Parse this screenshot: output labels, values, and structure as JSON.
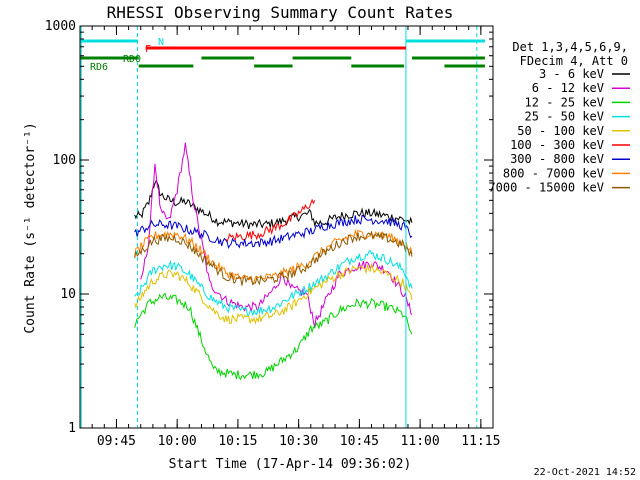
{
  "chart_data": {
    "type": "line",
    "title": "RHESSI Observing Summary Count Rates",
    "xlabel": "Start Time (17-Apr-14 09:36:02)",
    "ylabel": "Count Rate (s⁻¹ detector⁻¹)",
    "y_scale": "log",
    "ylim": [
      1,
      1000
    ],
    "xlim_minutes_after_0936": [
      0,
      102
    ],
    "x_ticks": [
      {
        "label": "09:45",
        "min": 9
      },
      {
        "label": "10:00",
        "min": 24
      },
      {
        "label": "10:15",
        "min": 39
      },
      {
        "label": "10:30",
        "min": 54
      },
      {
        "label": "10:45",
        "min": 69
      },
      {
        "label": "11:00",
        "min": 84
      },
      {
        "label": "11:15",
        "min": 99
      }
    ],
    "y_ticks": [
      {
        "label": "1",
        "value": 1
      },
      {
        "label": "10",
        "value": 10
      },
      {
        "label": "100",
        "value": 100
      },
      {
        "label": "1000",
        "value": 1000
      }
    ],
    "legend_header": [
      "Det 1,3,4,5,6,9,",
      "FDecim 4, Att 0"
    ],
    "legend_position": "right",
    "series": [
      {
        "name": "3 - 6 keV",
        "color": "#000000",
        "points": [
          [
            13.5,
            38
          ],
          [
            15,
            38
          ],
          [
            17,
            48
          ],
          [
            18.5,
            70
          ],
          [
            20,
            55
          ],
          [
            22,
            50
          ],
          [
            24,
            48
          ],
          [
            26,
            49
          ],
          [
            28,
            45
          ],
          [
            31,
            40
          ],
          [
            34,
            35
          ],
          [
            38,
            34
          ],
          [
            42,
            33
          ],
          [
            46,
            33
          ],
          [
            50,
            35
          ],
          [
            54,
            38
          ],
          [
            57,
            40
          ],
          [
            58,
            34
          ],
          [
            60,
            34
          ],
          [
            64,
            38
          ],
          [
            68,
            40
          ],
          [
            72,
            40
          ],
          [
            76,
            38
          ],
          [
            80,
            36
          ],
          [
            82,
            34
          ]
        ]
      },
      {
        "name": "6 - 12 keV",
        "color": "#d400d4",
        "points": [
          [
            15,
            12
          ],
          [
            17,
            25
          ],
          [
            18.5,
            95
          ],
          [
            20,
            40
          ],
          [
            22,
            35
          ],
          [
            24,
            60
          ],
          [
            26,
            128
          ],
          [
            28,
            50
          ],
          [
            30,
            25
          ],
          [
            32,
            12
          ],
          [
            36,
            9
          ],
          [
            40,
            8
          ],
          [
            44,
            8
          ],
          [
            48,
            11
          ],
          [
            50,
            14
          ],
          [
            52,
            11
          ],
          [
            56,
            10
          ],
          [
            58,
            6
          ],
          [
            60,
            8
          ],
          [
            64,
            14
          ],
          [
            68,
            16
          ],
          [
            72,
            17
          ],
          [
            76,
            15
          ],
          [
            80,
            10
          ],
          [
            82,
            7
          ]
        ]
      },
      {
        "name": "12 - 25 keV",
        "color": "#00d400",
        "points": [
          [
            13.5,
            6
          ],
          [
            15,
            7
          ],
          [
            17,
            8.5
          ],
          [
            20,
            9.5
          ],
          [
            24,
            9
          ],
          [
            27,
            8
          ],
          [
            30,
            4.5
          ],
          [
            33,
            2.7
          ],
          [
            38,
            2.5
          ],
          [
            42,
            2.5
          ],
          [
            46,
            2.6
          ],
          [
            50,
            3.2
          ],
          [
            54,
            4
          ],
          [
            57,
            5.5
          ],
          [
            60,
            6
          ],
          [
            64,
            7.5
          ],
          [
            68,
            8.5
          ],
          [
            72,
            8.5
          ],
          [
            76,
            8
          ],
          [
            80,
            7
          ],
          [
            82,
            5
          ]
        ]
      },
      {
        "name": "25 - 50 keV",
        "color": "#00e0e0",
        "points": [
          [
            13.5,
            9
          ],
          [
            16,
            12
          ],
          [
            18,
            15
          ],
          [
            21,
            16.5
          ],
          [
            24,
            16
          ],
          [
            27,
            14
          ],
          [
            30,
            11
          ],
          [
            33,
            9
          ],
          [
            36,
            8
          ],
          [
            40,
            7.5
          ],
          [
            44,
            7.5
          ],
          [
            48,
            8
          ],
          [
            52,
            9.5
          ],
          [
            56,
            11
          ],
          [
            58,
            12
          ],
          [
            60,
            13
          ],
          [
            64,
            16
          ],
          [
            68,
            19
          ],
          [
            72,
            20
          ],
          [
            76,
            18
          ],
          [
            80,
            15
          ],
          [
            82,
            11
          ]
        ]
      },
      {
        "name": "50 - 100 keV",
        "color": "#e0c000",
        "points": [
          [
            13.5,
            8
          ],
          [
            16,
            10.5
          ],
          [
            18,
            12.5
          ],
          [
            21,
            14
          ],
          [
            24,
            14
          ],
          [
            27,
            12
          ],
          [
            30,
            9.5
          ],
          [
            33,
            7.5
          ],
          [
            36,
            6.5
          ],
          [
            40,
            6.5
          ],
          [
            44,
            6.5
          ],
          [
            48,
            7
          ],
          [
            52,
            8
          ],
          [
            56,
            10
          ],
          [
            58,
            11
          ],
          [
            60,
            12
          ],
          [
            64,
            14
          ],
          [
            68,
            15.5
          ],
          [
            72,
            15.5
          ],
          [
            76,
            14
          ],
          [
            80,
            12
          ],
          [
            82,
            9
          ]
        ]
      },
      {
        "name": "100 - 300 keV",
        "color": "#ff0000",
        "points": [
          [
            36,
            26
          ],
          [
            40,
            27
          ],
          [
            44,
            28
          ],
          [
            48,
            31
          ],
          [
            52,
            36
          ],
          [
            55,
            42
          ],
          [
            57,
            48
          ],
          [
            58,
            50
          ]
        ]
      },
      {
        "name": "300 - 800 keV",
        "color": "#0000cc",
        "points": [
          [
            13.5,
            28
          ],
          [
            16,
            31
          ],
          [
            18,
            33
          ],
          [
            21,
            33
          ],
          [
            24,
            32
          ],
          [
            27,
            30
          ],
          [
            30,
            28
          ],
          [
            33,
            26
          ],
          [
            36,
            24
          ],
          [
            40,
            24
          ],
          [
            44,
            24
          ],
          [
            48,
            25
          ],
          [
            52,
            27
          ],
          [
            56,
            29
          ],
          [
            58,
            30
          ],
          [
            60,
            32
          ],
          [
            64,
            34
          ],
          [
            68,
            36
          ],
          [
            72,
            36
          ],
          [
            76,
            35
          ],
          [
            80,
            32
          ],
          [
            82,
            27
          ]
        ]
      },
      {
        "name": "800 - 7000 keV",
        "color": "#ff8000",
        "points": [
          [
            13.5,
            20
          ],
          [
            16,
            24
          ],
          [
            18,
            27
          ],
          [
            21,
            28
          ],
          [
            24,
            28
          ],
          [
            27,
            25
          ],
          [
            30,
            21
          ],
          [
            33,
            17
          ],
          [
            36,
            14.5
          ],
          [
            40,
            13
          ],
          [
            44,
            13
          ],
          [
            48,
            13.5
          ],
          [
            52,
            15
          ],
          [
            56,
            17
          ],
          [
            58,
            19
          ],
          [
            60,
            21
          ],
          [
            64,
            25
          ],
          [
            68,
            28
          ],
          [
            72,
            28
          ],
          [
            76,
            27
          ],
          [
            80,
            24
          ],
          [
            82,
            20
          ]
        ]
      },
      {
        "name": "7000 - 15000 keV",
        "color": "#8b5a00",
        "points": [
          [
            13.5,
            19
          ],
          [
            16,
            22
          ],
          [
            18,
            25
          ],
          [
            21,
            26
          ],
          [
            24,
            26
          ],
          [
            27,
            23
          ],
          [
            30,
            19
          ],
          [
            33,
            16
          ],
          [
            36,
            13.5
          ],
          [
            40,
            12.5
          ],
          [
            44,
            12.5
          ],
          [
            48,
            13
          ],
          [
            52,
            14
          ],
          [
            56,
            16
          ],
          [
            58,
            18
          ],
          [
            60,
            20
          ],
          [
            64,
            24
          ],
          [
            68,
            27
          ],
          [
            72,
            27
          ],
          [
            76,
            26
          ],
          [
            80,
            23
          ],
          [
            82,
            19
          ]
        ]
      }
    ],
    "annotation_bars": [
      {
        "label": "N",
        "color": "#00e0e0",
        "segments": [
          [
            0,
            14.2
          ],
          [
            80.5,
            100
          ]
        ]
      },
      {
        "label": "F",
        "color": "#ff0000",
        "segments": [
          [
            16.2,
            80.5
          ]
        ]
      },
      {
        "label": "RD0",
        "color": "#008000",
        "segments": [
          [
            0,
            14.5
          ],
          [
            30,
            43
          ],
          [
            52.5,
            67
          ],
          [
            82,
            100
          ]
        ]
      },
      {
        "label": "RD6",
        "color": "#008000",
        "segments": [
          [
            14.5,
            28
          ],
          [
            43,
            52.5
          ],
          [
            67,
            80
          ],
          [
            90,
            100
          ]
        ]
      }
    ],
    "vertical_markers": [
      {
        "color": "#00e0e0",
        "style": "solid",
        "min": 0.3
      },
      {
        "color": "#00e0e0",
        "style": "dashed",
        "min": 14.2
      },
      {
        "color": "#00e0e0",
        "style": "solid",
        "min": 80.5
      },
      {
        "color": "#00e0e0",
        "style": "dashed",
        "min": 98
      }
    ]
  },
  "footer": {
    "date_stamp": "22-Oct-2021 14:52"
  }
}
